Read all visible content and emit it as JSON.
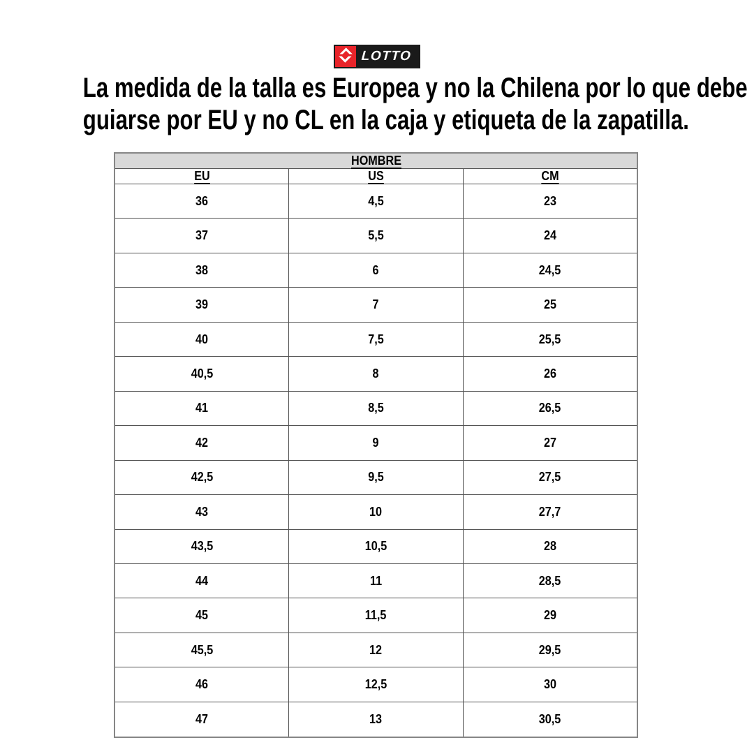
{
  "brand": {
    "logo_text": "LOTTO",
    "logo_icon": "lotto-double-diamond-icon",
    "logo_colors": {
      "red": "#e8242a",
      "black": "#1a1a1a",
      "white": "#ffffff"
    }
  },
  "heading": {
    "line1": "La medida de la talla es Europea y no la Chilena por lo que debe",
    "line2": "guiarse por EU y no CL en la caja y etiqueta de la zapatilla."
  },
  "size_table": {
    "title": "HOMBRE",
    "header_bg": "#d9d9d9",
    "columns": [
      "EU",
      "US",
      "CM"
    ],
    "rows": [
      [
        "36",
        "4,5",
        "23"
      ],
      [
        "37",
        "5,5",
        "24"
      ],
      [
        "38",
        "6",
        "24,5"
      ],
      [
        "39",
        "7",
        "25"
      ],
      [
        "40",
        "7,5",
        "25,5"
      ],
      [
        "40,5",
        "8",
        "26"
      ],
      [
        "41",
        "8,5",
        "26,5"
      ],
      [
        "42",
        "9",
        "27"
      ],
      [
        "42,5",
        "9,5",
        "27,5"
      ],
      [
        "43",
        "10",
        "27,7"
      ],
      [
        "43,5",
        "10,5",
        "28"
      ],
      [
        "44",
        "11",
        "28,5"
      ],
      [
        "45",
        "11,5",
        "29"
      ],
      [
        "45,5",
        "12",
        "29,5"
      ],
      [
        "46",
        "12,5",
        "30"
      ],
      [
        "47",
        "13",
        "30,5"
      ]
    ]
  }
}
